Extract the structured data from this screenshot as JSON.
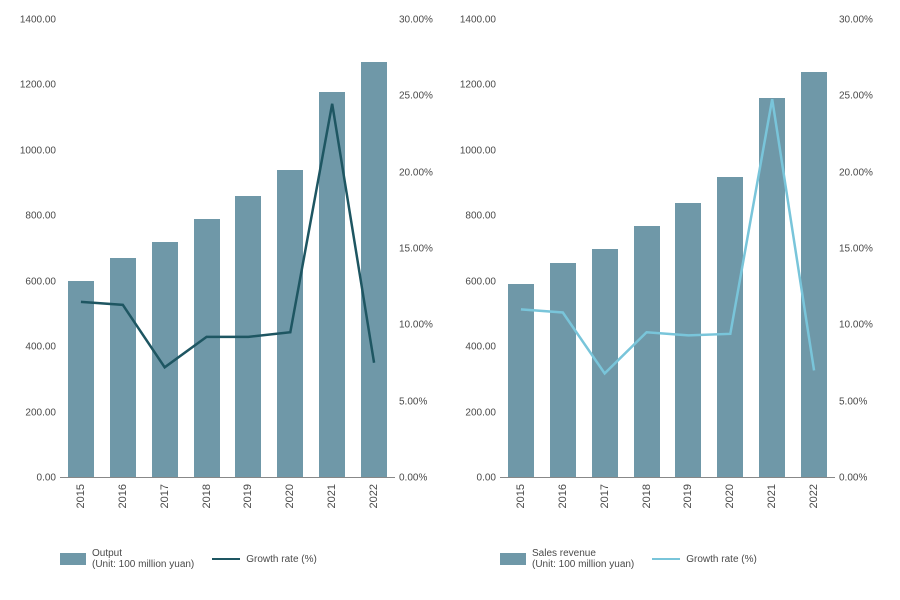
{
  "layout": {
    "panel_count": 2,
    "aspect": "side-by-side",
    "background_color": "#ffffff"
  },
  "charts": [
    {
      "type": "bar+line",
      "categories": [
        "2015",
        "2016",
        "2017",
        "2018",
        "2019",
        "2020",
        "2021",
        "2022"
      ],
      "bars": {
        "values": [
          600,
          670,
          720,
          790,
          860,
          940,
          1180,
          1270
        ],
        "color": "#6f98a8",
        "width_ratio": 0.62
      },
      "line": {
        "values": [
          11.5,
          11.3,
          7.2,
          9.2,
          9.2,
          9.5,
          24.5,
          7.5
        ],
        "color": "#1e5662",
        "stroke_width": 2.5
      },
      "y_left": {
        "min": 0,
        "max": 1400,
        "step": 200,
        "format": "fixed2",
        "ticks": [
          "0.00",
          "200.00",
          "400.00",
          "600.00",
          "800.00",
          "1000.00",
          "1200.00",
          "1400.00"
        ]
      },
      "y_right": {
        "min": 0,
        "max": 30,
        "step": 5,
        "format": "pct2",
        "ticks": [
          "0.00%",
          "5.00%",
          "10.00%",
          "15.00%",
          "20.00%",
          "25.00%",
          "30.00%"
        ]
      },
      "x_label_rotation": -90,
      "tick_fontsize": 10,
      "legend": {
        "bar_label": "Output",
        "bar_sublabel": "(Unit: 100 million yuan)",
        "line_label": "Growth rate (%)"
      }
    },
    {
      "type": "bar+line",
      "categories": [
        "2015",
        "2016",
        "2017",
        "2018",
        "2019",
        "2020",
        "2021",
        "2022"
      ],
      "bars": {
        "values": [
          590,
          655,
          700,
          770,
          840,
          920,
          1160,
          1240
        ],
        "color": "#6f98a8",
        "width_ratio": 0.62
      },
      "line": {
        "values": [
          11.0,
          10.8,
          6.8,
          9.5,
          9.3,
          9.4,
          24.8,
          7.0
        ],
        "color": "#79c5da",
        "stroke_width": 2.5
      },
      "y_left": {
        "min": 0,
        "max": 1400,
        "step": 200,
        "format": "fixed2",
        "ticks": [
          "0.00",
          "200.00",
          "400.00",
          "600.00",
          "800.00",
          "1000.00",
          "1200.00",
          "1400.00"
        ]
      },
      "y_right": {
        "min": 0,
        "max": 30,
        "step": 5,
        "format": "pct2",
        "ticks": [
          "0.00%",
          "5.00%",
          "10.00%",
          "15.00%",
          "20.00%",
          "25.00%",
          "30.00%"
        ]
      },
      "x_label_rotation": -90,
      "tick_fontsize": 10,
      "legend": {
        "bar_label": "Sales revenue",
        "bar_sublabel": "(Unit: 100 million yuan)",
        "line_label": "Growth rate (%)"
      }
    }
  ]
}
